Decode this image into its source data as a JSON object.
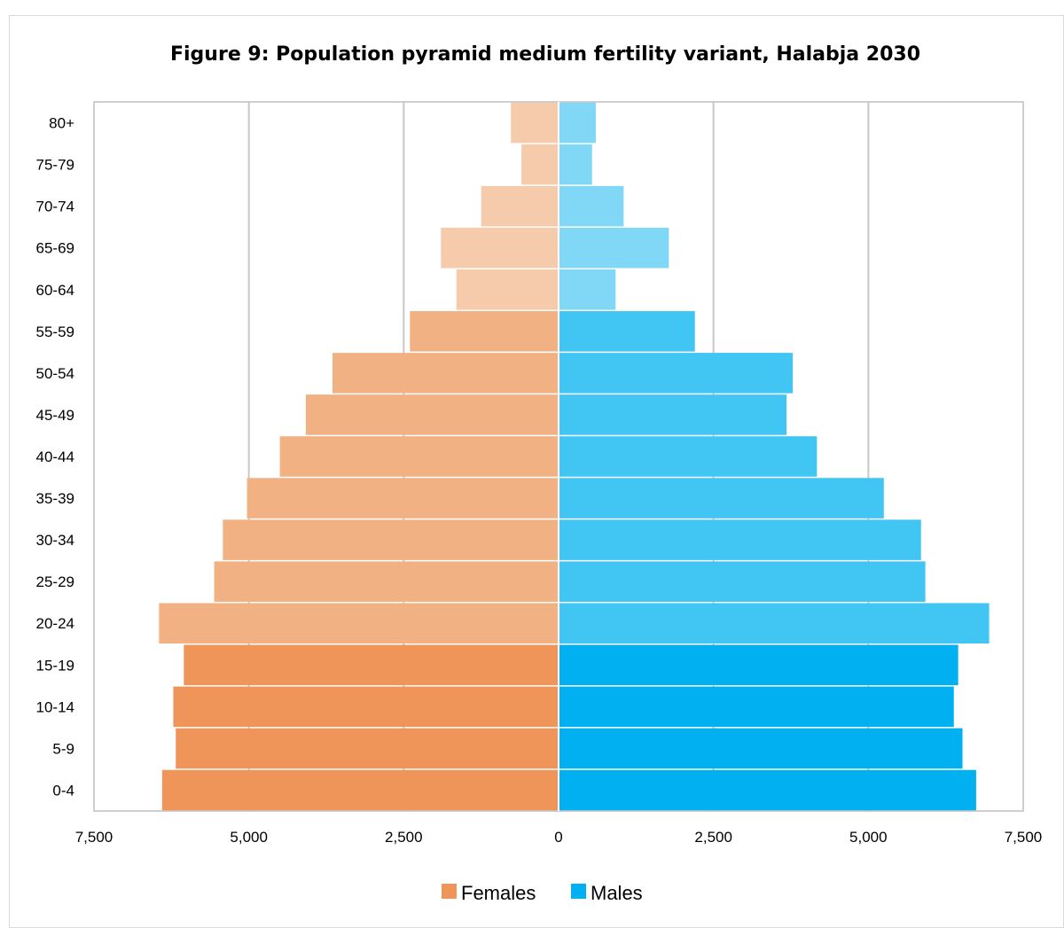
{
  "chart_data": {
    "type": "bar",
    "orientation": "horizontal",
    "layout": "population-pyramid",
    "title": "Figure 9: Population pyramid medium fertility variant, Halabja 2030",
    "categories": [
      "0-4",
      "5-9",
      "10-14",
      "15-19",
      "20-24",
      "25-29",
      "30-34",
      "35-39",
      "40-44",
      "45-49",
      "50-54",
      "55-59",
      "60-64",
      "65-69",
      "70-74",
      "75-79",
      "80+"
    ],
    "series": [
      {
        "name": "Females",
        "side": "left",
        "values": [
          6400,
          6180,
          6220,
          6050,
          6450,
          5560,
          5420,
          5030,
          4500,
          4080,
          3650,
          2400,
          1650,
          1900,
          1250,
          600,
          770
        ],
        "colors": [
          "#f0955a",
          "#f0955a",
          "#f0955a",
          "#f0955a",
          "#f2b183",
          "#f2b183",
          "#f2b183",
          "#f2b183",
          "#f2b183",
          "#f2b183",
          "#f2b183",
          "#f2b183",
          "#f6cbac",
          "#f6cbac",
          "#f6cbac",
          "#f6cbac",
          "#f6cbac"
        ]
      },
      {
        "name": "Males",
        "side": "right",
        "values": [
          6740,
          6520,
          6380,
          6450,
          6950,
          5920,
          5850,
          5250,
          4170,
          3680,
          3780,
          2200,
          920,
          1780,
          1050,
          540,
          600
        ],
        "colors": [
          "#00b0f0",
          "#00b0f0",
          "#00b0f0",
          "#00b0f0",
          "#41c5f3",
          "#41c5f3",
          "#41c5f3",
          "#41c5f3",
          "#41c5f3",
          "#41c5f3",
          "#41c5f3",
          "#41c5f3",
          "#80d7f6",
          "#80d7f6",
          "#80d7f6",
          "#80d7f6",
          "#80d7f6"
        ]
      }
    ],
    "xlim": [
      -7500,
      7500
    ],
    "xticks": [
      -7500,
      -5000,
      -2500,
      0,
      2500,
      5000,
      7500
    ],
    "xtick_labels": [
      "7,500",
      "5,000",
      "2,500",
      "0",
      "2,500",
      "5,000",
      "7,500"
    ],
    "grid": true,
    "legend_position": "bottom",
    "legend_colors": {
      "Females": "#f0955a",
      "Males": "#00b0f0"
    },
    "gridline_color": "#c8c8c8",
    "plot_border_color": "#bfbfbf"
  }
}
